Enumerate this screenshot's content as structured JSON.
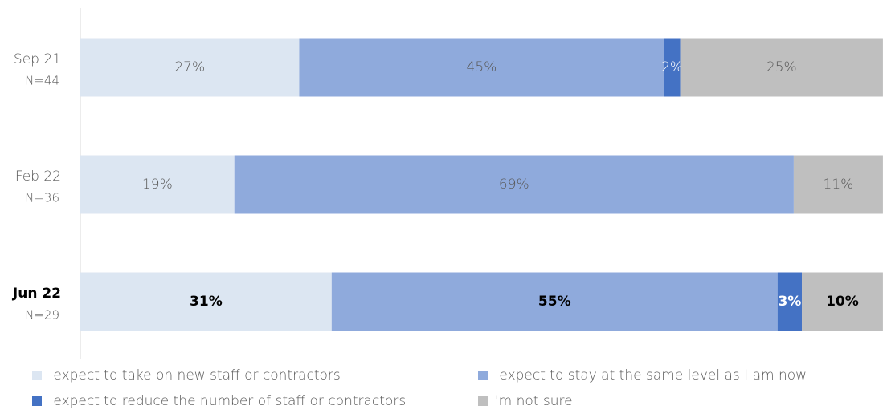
{
  "chart_data": {
    "type": "stacked-barh",
    "categories": [
      "Sep 21",
      "Feb 22",
      "Jun 22"
    ],
    "category_notes": [
      "N=44",
      "N=36",
      "N=29"
    ],
    "emphasis": [
      false,
      false,
      true
    ],
    "xlim": [
      0,
      100
    ],
    "series": [
      {
        "name": "I expect to take on new staff or contractors",
        "color": "#dce6f2",
        "values": [
          27,
          19,
          31
        ],
        "value_labels": [
          "27%",
          "19%",
          "31%"
        ]
      },
      {
        "name": "I expect to stay at the same level as I am now",
        "color": "#8faadc",
        "values": [
          45,
          69,
          55
        ],
        "value_labels": [
          "45%",
          "69%",
          "55%"
        ]
      },
      {
        "name": "I expect to reduce the number of staff or contractors",
        "color": "#4472c4",
        "values": [
          2,
          null,
          3
        ],
        "value_labels": [
          "2%",
          null,
          "3%"
        ]
      },
      {
        "name": "I'm not sure",
        "color": "#bfbfbf",
        "values": [
          25,
          11,
          10
        ],
        "value_labels": [
          "25%",
          "11%",
          "10%"
        ]
      }
    ]
  }
}
